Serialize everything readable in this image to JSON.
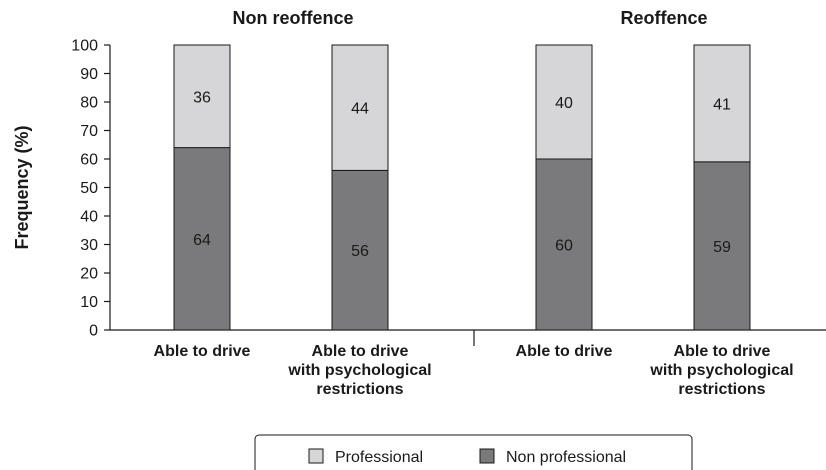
{
  "chart_data": {
    "type": "bar",
    "stacked": true,
    "ylabel": "Frequency (%)",
    "ylim": [
      0,
      100
    ],
    "yticks": [
      0,
      10,
      20,
      30,
      40,
      50,
      60,
      70,
      80,
      90,
      100
    ],
    "grid": false,
    "legend_position": "bottom",
    "groups": [
      {
        "title": "Non reoffence",
        "categories": [
          [
            "Able to drive"
          ],
          [
            "Able to drive",
            "with psychological",
            "restrictions"
          ]
        ]
      },
      {
        "title": "Reoffence",
        "categories": [
          [
            "Able to drive"
          ],
          [
            "Able to drive",
            "with psychological",
            "restrictions"
          ]
        ]
      }
    ],
    "series": [
      {
        "name": "Non professional",
        "color": "#7a7a7c",
        "values": [
          64,
          56,
          60,
          59
        ]
      },
      {
        "name": "Professional",
        "color": "#d6d6d8",
        "values": [
          36,
          44,
          40,
          41
        ]
      }
    ],
    "legend_order": [
      "Professional",
      "Non professional"
    ]
  }
}
